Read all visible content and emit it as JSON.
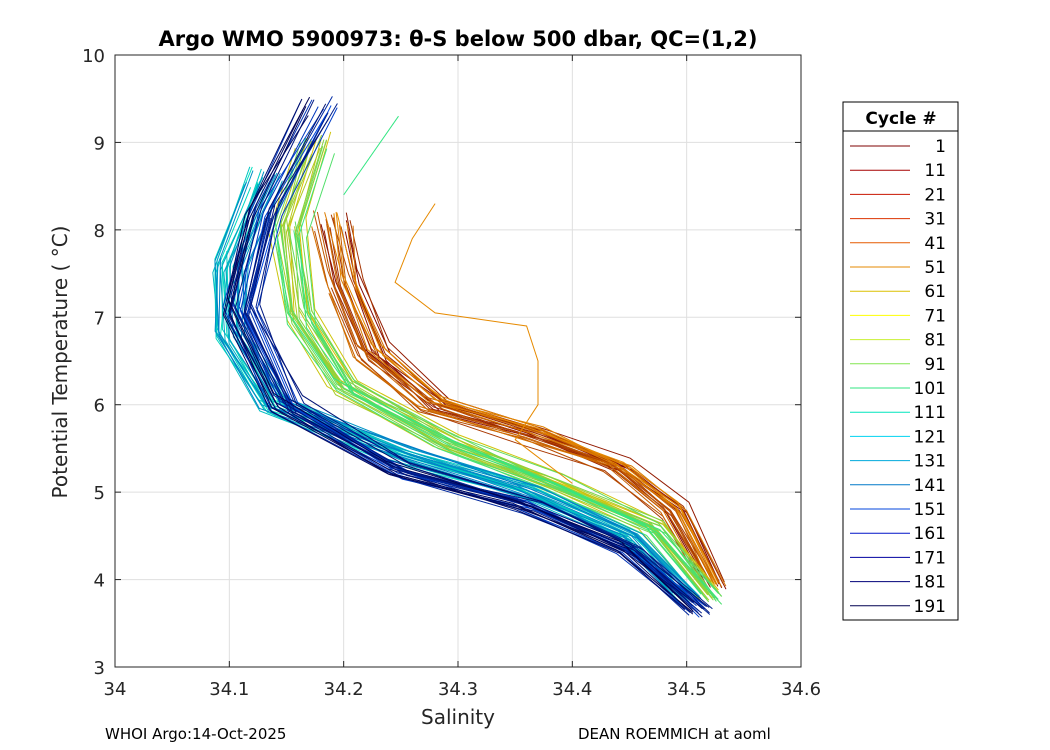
{
  "chart_data": {
    "type": "line",
    "title": "Argo WMO 5900973: θ-S below 500 dbar,  QC=(1,2)",
    "xlabel": "Salinity",
    "ylabel": "Potential Temperature ( °C)",
    "xlim": [
      34,
      34.6
    ],
    "ylim": [
      3,
      10
    ],
    "xticks": [
      34,
      34.1,
      34.2,
      34.3,
      34.4,
      34.5,
      34.6
    ],
    "xtick_labels": [
      "34",
      "34.1",
      "34.2",
      "34.3",
      "34.4",
      "34.5",
      "34.6"
    ],
    "yticks": [
      3,
      4,
      5,
      6,
      7,
      8,
      9,
      10
    ],
    "ytick_labels": [
      "3",
      "4",
      "5",
      "6",
      "7",
      "8",
      "9",
      "10"
    ],
    "grid": true,
    "legend": {
      "title": "Cycle #",
      "placement": "outside-right",
      "entries": [
        {
          "label": "1",
          "color": "#7f0000"
        },
        {
          "label": "11",
          "color": "#a50000"
        },
        {
          "label": "21",
          "color": "#c81400"
        },
        {
          "label": "31",
          "color": "#dc3200"
        },
        {
          "label": "41",
          "color": "#e65a00"
        },
        {
          "label": "51",
          "color": "#e68a00"
        },
        {
          "label": "61",
          "color": "#dcc000"
        },
        {
          "label": "71",
          "color": "#ffff00"
        },
        {
          "label": "81",
          "color": "#c8f032"
        },
        {
          "label": "91",
          "color": "#82e650"
        },
        {
          "label": "101",
          "color": "#32e682"
        },
        {
          "label": "111",
          "color": "#00e6be"
        },
        {
          "label": "121",
          "color": "#00d2f0"
        },
        {
          "label": "131",
          "color": "#00aadc"
        },
        {
          "label": "141",
          "color": "#0078c8"
        },
        {
          "label": "151",
          "color": "#0046dc"
        },
        {
          "label": "161",
          "color": "#0014c8"
        },
        {
          "label": "171",
          "color": "#0000a0"
        },
        {
          "label": "181",
          "color": "#000078"
        },
        {
          "label": "191",
          "color": "#000050"
        }
      ]
    },
    "series_groups": [
      {
        "name": "cycles 1-60",
        "color_range": [
          "#7f0000",
          "#e68a00"
        ],
        "curve": [
          [
            34.19,
            8.1
          ],
          [
            34.2,
            7.4
          ],
          [
            34.225,
            6.6
          ],
          [
            34.28,
            6.0
          ],
          [
            34.37,
            5.65
          ],
          [
            34.44,
            5.3
          ],
          [
            34.49,
            4.8
          ],
          [
            34.525,
            3.95
          ]
        ]
      },
      {
        "name": "cycles 61-110",
        "color_range": [
          "#dcc000",
          "#32e682"
        ],
        "curve": [
          [
            34.175,
            9.0
          ],
          [
            34.15,
            8.0
          ],
          [
            34.16,
            7.0
          ],
          [
            34.2,
            6.2
          ],
          [
            34.29,
            5.55
          ],
          [
            34.38,
            5.1
          ],
          [
            34.47,
            4.6
          ],
          [
            34.52,
            3.8
          ]
        ]
      },
      {
        "name": "cycles 111-140",
        "color_range": [
          "#00e6be",
          "#0078c8"
        ],
        "curve": [
          [
            34.13,
            8.6
          ],
          [
            34.1,
            7.6
          ],
          [
            34.1,
            6.8
          ],
          [
            34.14,
            6.0
          ],
          [
            34.25,
            5.45
          ],
          [
            34.36,
            5.0
          ],
          [
            34.45,
            4.5
          ],
          [
            34.5,
            3.8
          ]
        ]
      },
      {
        "name": "cycles 141-191",
        "color_range": [
          "#0046dc",
          "#000050"
        ],
        "curve": [
          [
            34.18,
            9.4
          ],
          [
            34.13,
            8.2
          ],
          [
            34.11,
            7.1
          ],
          [
            34.15,
            6.0
          ],
          [
            34.25,
            5.25
          ],
          [
            34.36,
            4.85
          ],
          [
            34.45,
            4.35
          ],
          [
            34.51,
            3.65
          ]
        ]
      }
    ],
    "annotations": [
      {
        "name": "cycle-51 outlier",
        "color": "#e68a00",
        "points": [
          [
            34.28,
            8.3
          ],
          [
            34.26,
            7.9
          ],
          [
            34.245,
            7.4
          ],
          [
            34.28,
            7.05
          ],
          [
            34.36,
            6.9
          ],
          [
            34.37,
            6.5
          ],
          [
            34.37,
            6.0
          ],
          [
            34.35,
            5.6
          ],
          [
            34.4,
            5.1
          ]
        ]
      },
      {
        "name": "cycle-91 upper segment",
        "color": "#32e682",
        "points": [
          [
            34.2,
            8.4
          ],
          [
            34.248,
            9.3
          ]
        ]
      }
    ]
  },
  "footer": {
    "left": "WHOI Argo:14-Oct-2025",
    "right": "DEAN ROEMMICH at aoml"
  }
}
